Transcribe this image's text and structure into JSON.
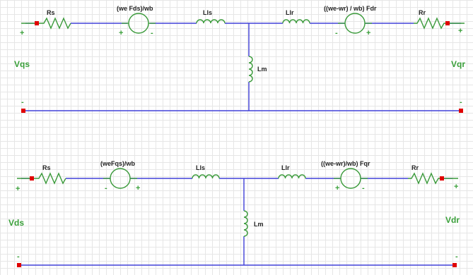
{
  "colors": {
    "wire": "#4040d8",
    "component": "#3a9a3a",
    "terminal": "#e00000",
    "port_label": "#3aa03a"
  },
  "q_circuit": {
    "port_left": "Vqs",
    "port_right": "Vqr",
    "rs": "Rs",
    "source1": "(we Fds)/wb",
    "lls": "Lls",
    "llr": "Llr",
    "source2": "((we-wr) / wb) Fdr",
    "rr": "Rr",
    "lm": "Lm",
    "plus": "+",
    "minus": "-"
  },
  "d_circuit": {
    "port_left": "Vds",
    "port_right": "Vdr",
    "rs": "Rs",
    "source1": "(weFqs)/wb",
    "lls": "Lls",
    "llr": "Llr",
    "source2": "((we-wr)/wb) Fqr",
    "rr": "Rr",
    "lm": "Lm",
    "plus": "+",
    "minus": "-"
  }
}
